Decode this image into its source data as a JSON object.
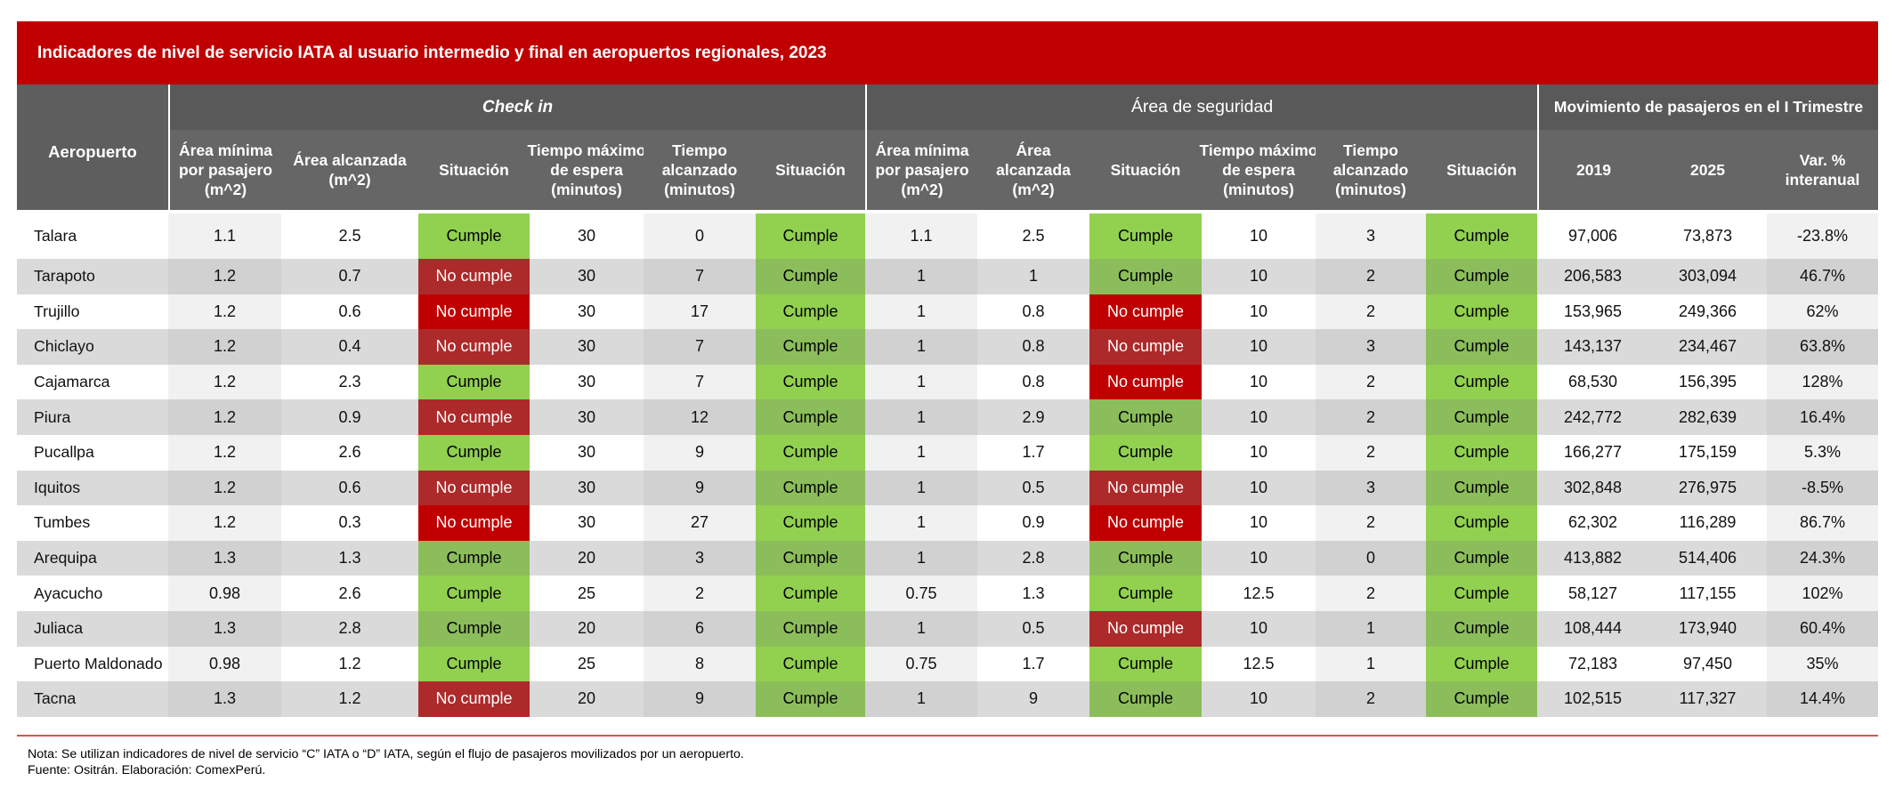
{
  "colors": {
    "title_bar": "#c00000",
    "header_group": "#595959",
    "header_columns": "#666666",
    "header_row_label": "#5e5e5e",
    "cumple": "#92d050",
    "cumple_alt_row": "#8cbd5b",
    "no_cumple": "#c00000",
    "no_cumple_alt_row": "#ad2a2a",
    "alt_row": "#dadada",
    "footer_rule": "#d9534f"
  },
  "chart_data": {
    "type": "table",
    "title": "Indicadores de nivel de servicio IATA al usuario intermedio y final en aeropuertos regionales, 2023",
    "row_header": "Aeropuerto",
    "column_groups": [
      {
        "label": "Check in",
        "columns": [
          "Área mínima\npor pasajero\n(m^2)",
          "Área alcanzada\n(m^2)",
          "Situación",
          "Tiempo máximo\nde espera\n(minutos)",
          "Tiempo\nalcanzado\n(minutos)",
          "Situación"
        ]
      },
      {
        "label": "Área de seguridad",
        "columns": [
          "Área mínima\npor pasajero\n(m^2)",
          "Área\nalcanzada\n(m^2)",
          "Situación",
          "Tiempo máximo\nde espera\n(minutos)",
          "Tiempo\nalcanzado\n(minutos)",
          "Situación"
        ]
      },
      {
        "label": "Movimiento de pasajeros en el I Trimestre",
        "columns": [
          "2019",
          "2025",
          "Var. %\ninteranual"
        ]
      }
    ],
    "rows": [
      {
        "label": "Talara",
        "cells": [
          "1.1",
          "2.5",
          "Cumple",
          "30",
          "0",
          "Cumple",
          "1.1",
          "2.5",
          "Cumple",
          "10",
          "3",
          "Cumple",
          "97,006",
          "73,873",
          "-23.8%"
        ]
      },
      {
        "label": "Tarapoto",
        "cells": [
          "1.2",
          "0.7",
          "No cumple",
          "30",
          "7",
          "Cumple",
          "1",
          "1",
          "Cumple",
          "10",
          "2",
          "Cumple",
          "206,583",
          "303,094",
          "46.7%"
        ]
      },
      {
        "label": "Trujillo",
        "cells": [
          "1.2",
          "0.6",
          "No cumple",
          "30",
          "17",
          "Cumple",
          "1",
          "0.8",
          "No cumple",
          "10",
          "2",
          "Cumple",
          "153,965",
          "249,366",
          "62%"
        ]
      },
      {
        "label": "Chiclayo",
        "cells": [
          "1.2",
          "0.4",
          "No cumple",
          "30",
          "7",
          "Cumple",
          "1",
          "0.8",
          "No cumple",
          "10",
          "3",
          "Cumple",
          "143,137",
          "234,467",
          "63.8%"
        ]
      },
      {
        "label": "Cajamarca",
        "cells": [
          "1.2",
          "2.3",
          "Cumple",
          "30",
          "7",
          "Cumple",
          "1",
          "0.8",
          "No cumple",
          "10",
          "2",
          "Cumple",
          "68,530",
          "156,395",
          "128%"
        ]
      },
      {
        "label": "Piura",
        "cells": [
          "1.2",
          "0.9",
          "No cumple",
          "30",
          "12",
          "Cumple",
          "1",
          "2.9",
          "Cumple",
          "10",
          "2",
          "Cumple",
          "242,772",
          "282,639",
          "16.4%"
        ]
      },
      {
        "label": "Pucallpa",
        "cells": [
          "1.2",
          "2.6",
          "Cumple",
          "30",
          "9",
          "Cumple",
          "1",
          "1.7",
          "Cumple",
          "10",
          "2",
          "Cumple",
          "166,277",
          "175,159",
          "5.3%"
        ]
      },
      {
        "label": "Iquitos",
        "cells": [
          "1.2",
          "0.6",
          "No cumple",
          "30",
          "9",
          "Cumple",
          "1",
          "0.5",
          "No cumple",
          "10",
          "3",
          "Cumple",
          "302,848",
          "276,975",
          "-8.5%"
        ]
      },
      {
        "label": "Tumbes",
        "cells": [
          "1.2",
          "0.3",
          "No cumple",
          "30",
          "27",
          "Cumple",
          "1",
          "0.9",
          "No cumple",
          "10",
          "2",
          "Cumple",
          "62,302",
          "116,289",
          "86.7%"
        ]
      },
      {
        "label": "Arequipa",
        "cells": [
          "1.3",
          "1.3",
          "Cumple",
          "20",
          "3",
          "Cumple",
          "1",
          "2.8",
          "Cumple",
          "10",
          "0",
          "Cumple",
          "413,882",
          "514,406",
          "24.3%"
        ]
      },
      {
        "label": "Ayacucho",
        "cells": [
          "0.98",
          "2.6",
          "Cumple",
          "25",
          "2",
          "Cumple",
          "0.75",
          "1.3",
          "Cumple",
          "12.5",
          "2",
          "Cumple",
          "58,127",
          "117,155",
          "102%"
        ]
      },
      {
        "label": "Juliaca",
        "cells": [
          "1.3",
          "2.8",
          "Cumple",
          "20",
          "6",
          "Cumple",
          "1",
          "0.5",
          "No cumple",
          "10",
          "1",
          "Cumple",
          "108,444",
          "173,940",
          "60.4%"
        ]
      },
      {
        "label": "Puerto Maldonado",
        "cells": [
          "0.98",
          "1.2",
          "Cumple",
          "25",
          "8",
          "Cumple",
          "0.75",
          "1.7",
          "Cumple",
          "12.5",
          "1",
          "Cumple",
          "72,183",
          "97,450",
          "35%"
        ]
      },
      {
        "label": "Tacna",
        "cells": [
          "1.3",
          "1.2",
          "No cumple",
          "20",
          "9",
          "Cumple",
          "1",
          "9",
          "Cumple",
          "10",
          "2",
          "Cumple",
          "102,515",
          "117,327",
          "14.4%"
        ]
      }
    ]
  },
  "footer": {
    "note": "Nota: Se utilizan indicadores de nivel de servicio “C” IATA o “D” IATA, según el flujo de pasajeros movilizados por un aeropuerto.",
    "source": "Fuente: Ositrán. Elaboración: ComexPerú."
  }
}
